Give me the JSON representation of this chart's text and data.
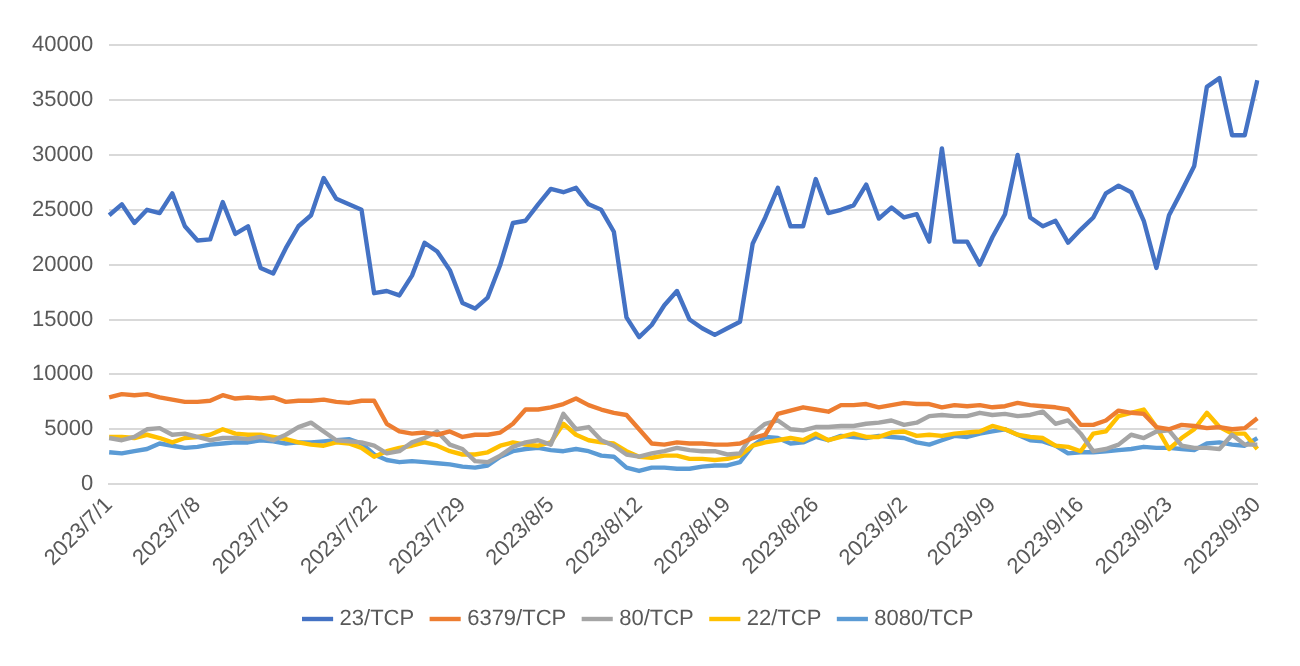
{
  "chart_data": {
    "type": "line",
    "categories": [
      "2023/7/1",
      null,
      null,
      null,
      null,
      null,
      null,
      "2023/7/8",
      null,
      null,
      null,
      null,
      null,
      null,
      "2023/7/15",
      null,
      null,
      null,
      null,
      null,
      null,
      "2023/7/22",
      null,
      null,
      null,
      null,
      null,
      null,
      "2023/7/29",
      null,
      null,
      null,
      null,
      null,
      null,
      "2023/8/5",
      null,
      null,
      null,
      null,
      null,
      null,
      "2023/8/12",
      null,
      null,
      null,
      null,
      null,
      null,
      "2023/8/19",
      null,
      null,
      null,
      null,
      null,
      null,
      "2023/8/26",
      null,
      null,
      null,
      null,
      null,
      null,
      "2023/9/2",
      null,
      null,
      null,
      null,
      null,
      null,
      "2023/9/9",
      null,
      null,
      null,
      null,
      null,
      null,
      "2023/9/16",
      null,
      null,
      null,
      null,
      null,
      null,
      "2023/9/23",
      null,
      null,
      null,
      null,
      null,
      null,
      "2023/9/30"
    ],
    "series": [
      {
        "name": "23/TCP",
        "color": "#4472c4",
        "values": [
          24500,
          25500,
          23800,
          25000,
          24700,
          26500,
          23500,
          22200,
          22300,
          25700,
          22800,
          23500,
          19700,
          19200,
          21500,
          23500,
          24500,
          27900,
          26000,
          25500,
          25000,
          17400,
          17600,
          17200,
          19000,
          22000,
          21200,
          19500,
          16500,
          16000,
          17000,
          20000,
          23800,
          24000,
          25500,
          26900,
          26600,
          27000,
          25500,
          25000,
          23000,
          15200,
          13400,
          14500,
          16300,
          17600,
          15000,
          14200,
          13600,
          14200,
          14800,
          21900,
          24300,
          27000,
          23500,
          23500,
          27800,
          24700,
          25000,
          25400,
          27300,
          24200,
          25200,
          24300,
          24600,
          22100,
          30600,
          22100,
          22100,
          20000,
          22500,
          24600,
          30000,
          24300,
          23500,
          24000,
          22000,
          23200,
          24300,
          26500,
          27200,
          26600,
          24000,
          19700,
          24500,
          26700,
          29000,
          36200,
          37000,
          31800,
          31800,
          36800
        ]
      },
      {
        "name": "6379/TCP",
        "color": "#ed7d31",
        "values": [
          7900,
          8200,
          8100,
          8200,
          7900,
          7700,
          7500,
          7500,
          7600,
          8100,
          7800,
          7900,
          7800,
          7900,
          7500,
          7600,
          7600,
          7700,
          7500,
          7400,
          7600,
          7600,
          5500,
          4800,
          4600,
          4700,
          4500,
          4800,
          4300,
          4500,
          4500,
          4700,
          5500,
          6800,
          6800,
          7000,
          7300,
          7800,
          7200,
          6800,
          6500,
          6300,
          5000,
          3700,
          3600,
          3800,
          3700,
          3700,
          3600,
          3600,
          3700,
          4200,
          4500,
          6400,
          6700,
          7000,
          6800,
          6600,
          7200,
          7200,
          7300,
          7000,
          7200,
          7400,
          7300,
          7300,
          7000,
          7200,
          7100,
          7200,
          7000,
          7100,
          7400,
          7200,
          7100,
          7000,
          6800,
          5400,
          5400,
          5800,
          6700,
          6500,
          6400,
          5200,
          5000,
          5400,
          5300,
          5100,
          5200,
          5000,
          5100,
          6000
        ]
      },
      {
        "name": "80/TCP",
        "color": "#a5a5a5",
        "values": [
          4200,
          4000,
          4300,
          5000,
          5100,
          4500,
          4600,
          4300,
          4000,
          4200,
          4200,
          4100,
          4300,
          4000,
          4500,
          5200,
          5600,
          4800,
          4000,
          3900,
          3800,
          3500,
          2800,
          3000,
          3800,
          4200,
          4800,
          3600,
          3200,
          2100,
          2000,
          2600,
          3400,
          3800,
          4000,
          3600,
          6400,
          5000,
          5200,
          4000,
          3500,
          2700,
          2500,
          2800,
          3000,
          3300,
          3100,
          3000,
          3000,
          2700,
          2800,
          4600,
          5500,
          5800,
          5000,
          4900,
          5200,
          5200,
          5300,
          5300,
          5500,
          5600,
          5800,
          5400,
          5600,
          6200,
          6300,
          6200,
          6200,
          6500,
          6300,
          6400,
          6200,
          6300,
          6600,
          5500,
          5800,
          4600,
          3000,
          3200,
          3600,
          4500,
          4200,
          4800,
          4900,
          3500,
          3300,
          3300,
          3200,
          4500,
          3600,
          3600
        ]
      },
      {
        "name": "22/TCP",
        "color": "#ffc000",
        "values": [
          4300,
          4300,
          4200,
          4500,
          4200,
          3800,
          4200,
          4300,
          4500,
          5000,
          4600,
          4500,
          4500,
          4300,
          4100,
          3800,
          3600,
          3500,
          3800,
          3700,
          3300,
          2500,
          3000,
          3300,
          3500,
          3800,
          3500,
          3000,
          2700,
          2700,
          2900,
          3500,
          3800,
          3600,
          3500,
          3800,
          5500,
          4500,
          4000,
          3800,
          3700,
          3000,
          2500,
          2400,
          2600,
          2600,
          2300,
          2300,
          2200,
          2300,
          2600,
          3500,
          3800,
          4000,
          4200,
          4000,
          4600,
          4000,
          4300,
          4600,
          4300,
          4300,
          4700,
          4800,
          4400,
          4500,
          4400,
          4600,
          4700,
          4800,
          5300,
          5000,
          4500,
          4300,
          4200,
          3500,
          3400,
          3000,
          4600,
          4800,
          6200,
          6500,
          6800,
          5200,
          3200,
          4200,
          5000,
          6500,
          5200,
          4600,
          4600,
          3200
        ]
      },
      {
        "name": "8080/TCP",
        "color": "#5b9bd5",
        "values": [
          2900,
          2800,
          3000,
          3200,
          3700,
          3500,
          3300,
          3400,
          3600,
          3700,
          3800,
          3800,
          4000,
          3900,
          3700,
          3800,
          3800,
          3900,
          4000,
          4100,
          3700,
          2700,
          2200,
          2000,
          2100,
          2000,
          1900,
          1800,
          1600,
          1500,
          1700,
          2500,
          3000,
          3200,
          3300,
          3100,
          3000,
          3200,
          3000,
          2600,
          2500,
          1500,
          1200,
          1500,
          1500,
          1400,
          1400,
          1600,
          1700,
          1700,
          2000,
          3500,
          4300,
          4200,
          3700,
          3800,
          4300,
          4000,
          4400,
          4300,
          4200,
          4400,
          4300,
          4200,
          3800,
          3600,
          4000,
          4400,
          4300,
          4600,
          4800,
          5000,
          4500,
          4000,
          3900,
          3500,
          2800,
          2900,
          2900,
          3000,
          3100,
          3200,
          3400,
          3300,
          3300,
          3200,
          3100,
          3700,
          3800,
          3600,
          3500,
          4200
        ]
      }
    ],
    "ylim": [
      0,
      40000
    ],
    "yticks": [
      0,
      5000,
      10000,
      15000,
      20000,
      25000,
      30000,
      35000,
      40000
    ],
    "grid": "y",
    "legend": "bottom"
  }
}
